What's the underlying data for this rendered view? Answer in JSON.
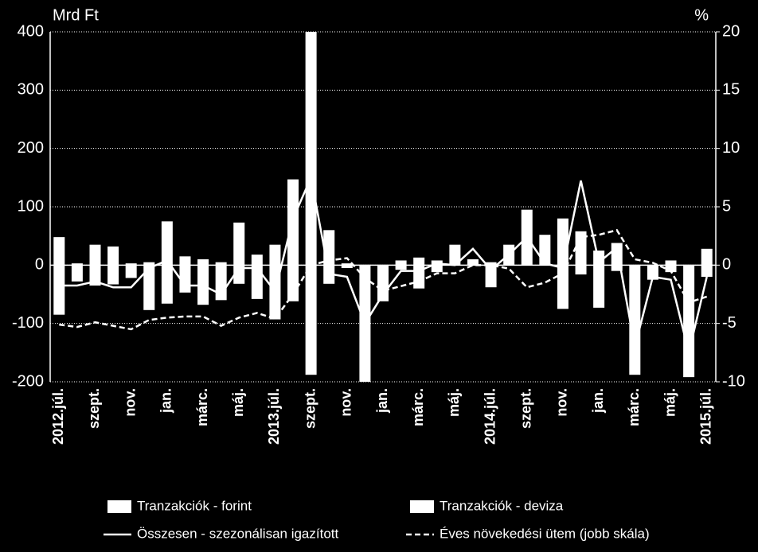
{
  "chart_data": {
    "type": "bar-line",
    "y_label": "Mrd Ft",
    "y2_label": "%",
    "categories": [
      "2012.júl.",
      null,
      "szept.",
      null,
      "nov.",
      null,
      "jan.",
      null,
      "márc.",
      null,
      "máj.",
      null,
      "2013.júl.",
      null,
      "szept.",
      null,
      "nov.",
      null,
      "jan.",
      null,
      "márc.",
      null,
      "máj.",
      null,
      "2014.júl.",
      null,
      "szept.",
      null,
      "nov.",
      null,
      "jan.",
      null,
      "márc.",
      null,
      "máj.",
      null,
      "2015.júl."
    ],
    "series": [
      {
        "name": "Tranzakciók - forint",
        "kind": "bar",
        "color": "#ffffff",
        "values": [
          48,
          3,
          35,
          32,
          3,
          5,
          75,
          15,
          10,
          5,
          73,
          18,
          35,
          147,
          400,
          60,
          3,
          0,
          0,
          8,
          13,
          8,
          35,
          10,
          5,
          35,
          95,
          52,
          80,
          58,
          25,
          38,
          0,
          0,
          8,
          0,
          28
        ]
      },
      {
        "name": "Tranzakciók - deviza",
        "kind": "bar",
        "color": "#ffffff",
        "values": [
          -85,
          -28,
          -35,
          -33,
          -22,
          -77,
          -66,
          -47,
          -68,
          -60,
          -32,
          -58,
          -93,
          -62,
          -188,
          -32,
          -5,
          -200,
          -62,
          -8,
          -40,
          -12,
          0,
          0,
          -38,
          0,
          0,
          0,
          -75,
          -16,
          -73,
          -10,
          -188,
          -25,
          -12,
          -192,
          -20
        ]
      },
      {
        "name": "Összesen - szezonálisan igazított",
        "kind": "line",
        "dash": false,
        "color": "#ffffff",
        "values": [
          -35,
          -35,
          -28,
          -38,
          -38,
          -5,
          8,
          -35,
          -35,
          -50,
          -5,
          -5,
          -45,
          80,
          150,
          -15,
          -20,
          -100,
          -50,
          -10,
          -10,
          3,
          0,
          28,
          -8,
          18,
          48,
          3,
          -5,
          145,
          5,
          30,
          -140,
          -20,
          -25,
          -150,
          -20
        ]
      },
      {
        "name": "Éves növekedési ütem (jobb skála)",
        "kind": "line",
        "dash": true,
        "axis": "y2",
        "color": "#ffffff",
        "values": [
          -5.1,
          -5.3,
          -4.9,
          -5.2,
          -5.5,
          -4.7,
          -4.5,
          -4.4,
          -4.4,
          -5.2,
          -4.5,
          -4.1,
          -4.6,
          -2.5,
          0,
          0.4,
          0.6,
          -1.1,
          -2.2,
          -1.8,
          -1.4,
          -0.7,
          -0.7,
          0,
          0,
          -0.3,
          -1.9,
          -1.5,
          -0.7,
          2.4,
          2.6,
          3,
          0.5,
          0.2,
          -0.5,
          -3.2,
          -2.7
        ]
      }
    ],
    "ylim": [
      -200,
      400
    ],
    "yticks": [
      -200,
      -100,
      0,
      100,
      200,
      300,
      400
    ],
    "y2lim": [
      -10,
      20
    ],
    "y2ticks": [
      -10,
      -5,
      0,
      5,
      10,
      15,
      20
    ],
    "grid": true
  }
}
